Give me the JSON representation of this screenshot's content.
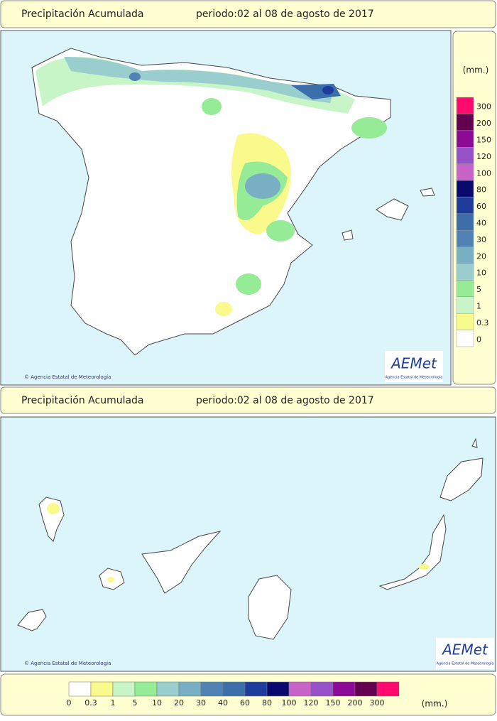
{
  "header_top": {
    "title": "Precipitación Acumulada",
    "period": "periodo:02 al 08 de agosto de 2017"
  },
  "header_bottom": {
    "title": "Precipitación Acumulada",
    "period": "periodo:02 al 08 de agosto de 2017"
  },
  "peninsula_map": {
    "credit": "© Agencia Estatal de Meteorología",
    "logo": "AEMet",
    "logo_subtitle": "Agencia Estatal de Meteorología"
  },
  "canary_map": {
    "credit": "© Agencia Estatal de Meteorología",
    "logo": "AEMet",
    "logo_subtitle": "Agencia Estatal de Meteorología"
  },
  "legend": {
    "unit": "(mm.)",
    "classes": [
      {
        "label": "0",
        "color": "#ffffff"
      },
      {
        "label": "0.3",
        "color": "#fafa8c"
      },
      {
        "label": "1",
        "color": "#c8f5c8"
      },
      {
        "label": "5",
        "color": "#96eb96"
      },
      {
        "label": "10",
        "color": "#9acdcd"
      },
      {
        "label": "20",
        "color": "#78afc3"
      },
      {
        "label": "30",
        "color": "#5082b4"
      },
      {
        "label": "40",
        "color": "#3c6eaa"
      },
      {
        "label": "60",
        "color": "#1e3c9b"
      },
      {
        "label": "80",
        "color": "#0a0a6e"
      },
      {
        "label": "100",
        "color": "#c864c8"
      },
      {
        "label": "120",
        "color": "#9650c8"
      },
      {
        "label": "150",
        "color": "#8c0a96"
      },
      {
        "label": "200",
        "color": "#640050"
      },
      {
        "label": "300",
        "color": "#ff0a6e"
      }
    ]
  }
}
